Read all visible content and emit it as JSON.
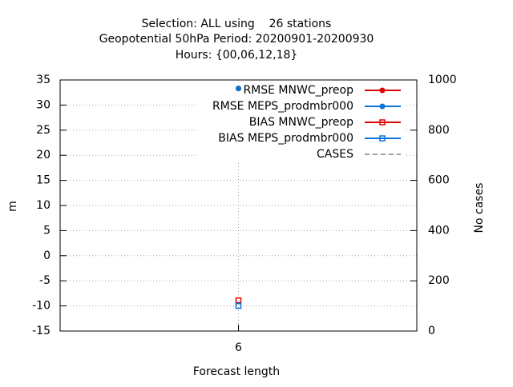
{
  "chart_data": {
    "type": "line",
    "title": "Selection: ALL using    26 stations",
    "subtitle": "Geopotential 50hPa   Period: 20200901-20200930",
    "subtitle2": "Hours: {00,06,12,18}",
    "xlabel": "Forecast length",
    "ylabel": "m",
    "y2label": "No cases",
    "x": [
      6
    ],
    "xlim": [
      5,
      7
    ],
    "xticks": [
      6
    ],
    "ylim": [
      -15,
      35
    ],
    "yticks": [
      -15,
      -10,
      -5,
      0,
      5,
      10,
      15,
      20,
      25,
      30,
      35
    ],
    "y2lim": [
      0,
      1000
    ],
    "y2ticks": [
      0,
      200,
      400,
      600,
      800,
      1000
    ],
    "grid": true,
    "legend": "top-right",
    "series": [
      {
        "name": "RMSE MNWC_preop",
        "color": "#e00000",
        "marker": "circle",
        "values": [
          33.3
        ]
      },
      {
        "name": "RMSE MEPS_prodmbr000",
        "color": "#0a72d8",
        "marker": "circle",
        "values": [
          33.3
        ]
      },
      {
        "name": "BIAS MNWC_preop",
        "color": "#e00000",
        "marker": "square",
        "values": [
          -8.9
        ]
      },
      {
        "name": "BIAS MEPS_prodmbr000",
        "color": "#0a72d8",
        "marker": "square",
        "values": [
          -10
        ]
      },
      {
        "name": "CASES",
        "color": "#a0a0a0",
        "dashed": true,
        "axis": "y2",
        "values": [
          null
        ]
      }
    ]
  }
}
